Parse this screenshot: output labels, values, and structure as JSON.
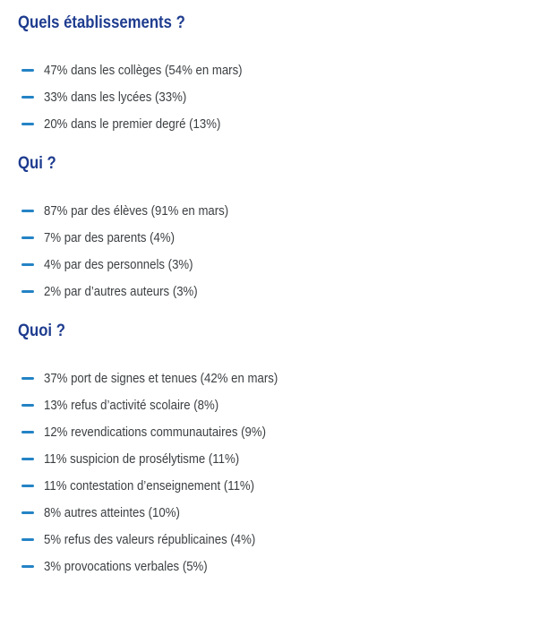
{
  "colors": {
    "heading": "#1e3c8f",
    "bullet": "#2483c5",
    "text": "#3c4043",
    "background": "#ffffff"
  },
  "sections": [
    {
      "title": "Quels établissements ?",
      "items": [
        "47% dans les collèges (54% en mars)",
        "33% dans les lycées (33%)",
        "20% dans le premier degré (13%)"
      ]
    },
    {
      "title": "Qui ?",
      "items": [
        "87% par des élèves (91% en mars)",
        "7% par des parents (4%)",
        "4% par des personnels (3%)",
        "2% par d’autres auteurs (3%)"
      ]
    },
    {
      "title": "Quoi ?",
      "items": [
        "37% port de signes et tenues (42% en mars)",
        "13% refus d’activité scolaire (8%)",
        "12% revendications communautaires (9%)",
        "11% suspicion de prosélytisme (11%)",
        "11% contestation d’enseignement (11%)",
        "8% autres atteintes (10%)",
        "5% refus des valeurs républicaines (4%)",
        "3% provocations verbales (5%)"
      ]
    }
  ]
}
